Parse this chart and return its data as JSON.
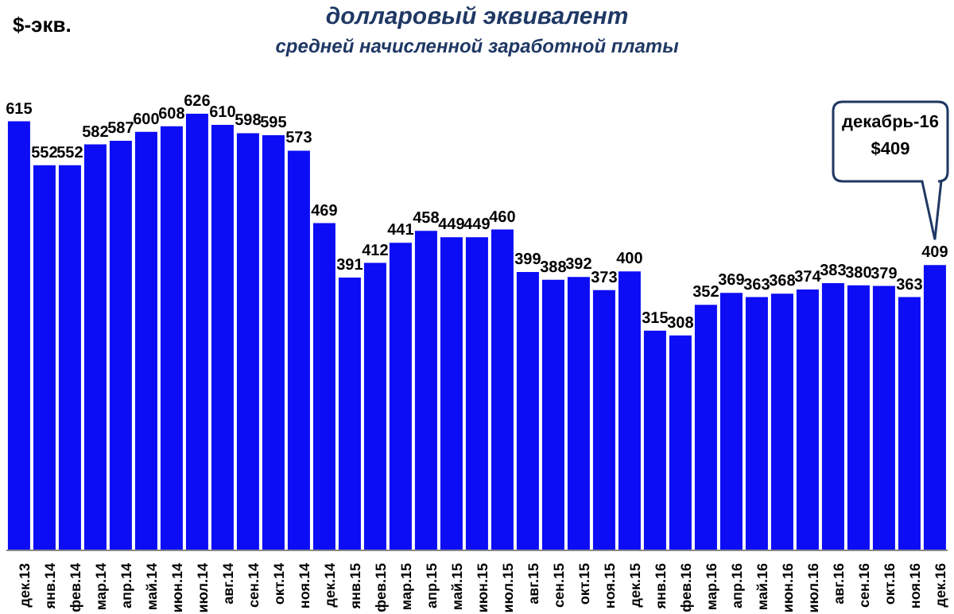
{
  "chart_data": {
    "type": "bar",
    "title": "долларовый эквивалент",
    "subtitle": "средней начисленной заработной платы",
    "ylabel": "$-экв.",
    "categories": [
      "дек.13",
      "янв.14",
      "фев.14",
      "мар.14",
      "апр.14",
      "май.14",
      "июн.14",
      "июл.14",
      "авг.14",
      "сен.14",
      "окт.14",
      "ноя.14",
      "дек.14",
      "янв.15",
      "фев.15",
      "мар.15",
      "апр.15",
      "май.15",
      "июн.15",
      "июл.15",
      "авг.15",
      "сен.15",
      "окт.15",
      "ноя.15",
      "дек.15",
      "янв.16",
      "фев.16",
      "мар.16",
      "апр.16",
      "май.16",
      "июн.16",
      "июл.16",
      "авг.16",
      "сен.16",
      "окт.16",
      "ноя.16",
      "дек.16"
    ],
    "values": [
      615,
      552,
      552,
      582,
      587,
      600,
      608,
      626,
      610,
      598,
      595,
      573,
      469,
      391,
      412,
      441,
      458,
      449,
      449,
      460,
      399,
      388,
      392,
      373,
      400,
      315,
      308,
      352,
      369,
      363,
      368,
      374,
      383,
      380,
      379,
      363,
      409
    ],
    "color": "#0c0cf5",
    "data_labels": true,
    "annotations": [
      "декабрь-16\n$409"
    ]
  }
}
